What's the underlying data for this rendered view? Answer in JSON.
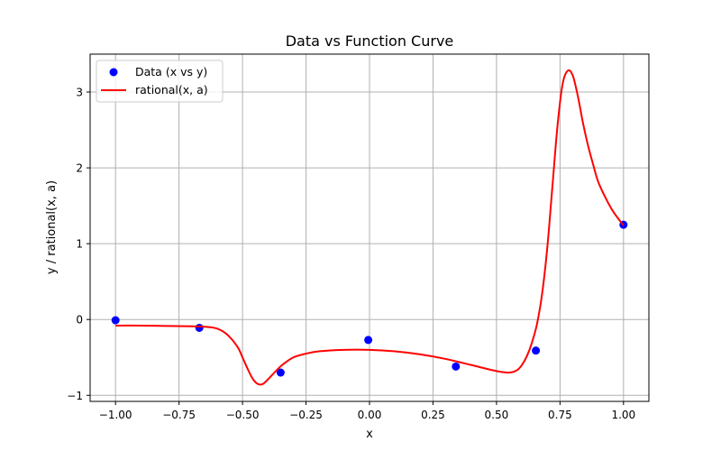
{
  "chart_data": {
    "type": "scatter",
    "title": "Data vs Function Curve",
    "xlabel": "x",
    "ylabel": "y / rational(x, a)",
    "xlim": [
      -1.1,
      1.1
    ],
    "ylim": [
      -1.08,
      3.5
    ],
    "xticks": [
      -1.0,
      -0.75,
      -0.5,
      -0.25,
      0.0,
      0.25,
      0.5,
      0.75,
      1.0
    ],
    "xtick_labels": [
      "−1.00",
      "−0.75",
      "−0.50",
      "−0.25",
      "0.00",
      "0.25",
      "0.50",
      "0.75",
      "1.00"
    ],
    "yticks": [
      -1,
      0,
      1,
      2,
      3
    ],
    "ytick_labels": [
      "−1",
      "0",
      "1",
      "2",
      "3"
    ],
    "grid": true,
    "legend": {
      "position": "upper-left",
      "entries": [
        "Data (x vs y)",
        "rational(x, a)"
      ]
    },
    "series": [
      {
        "name": "Data (x vs y)",
        "kind": "scatter",
        "color": "#0000ff",
        "x": [
          -1.0,
          -0.67,
          -0.35,
          -0.005,
          0.34,
          0.655,
          1.0
        ],
        "y": [
          -0.01,
          -0.11,
          -0.7,
          -0.27,
          -0.62,
          -0.41,
          1.25
        ]
      },
      {
        "name": "rational(x, a)",
        "kind": "line",
        "color": "#ff0000",
        "x": [
          -1.0,
          -0.9,
          -0.8,
          -0.7,
          -0.65,
          -0.6,
          -0.56,
          -0.52,
          -0.5,
          -0.48,
          -0.46,
          -0.44,
          -0.42,
          -0.4,
          -0.38,
          -0.36,
          -0.34,
          -0.3,
          -0.25,
          -0.2,
          -0.1,
          0.0,
          0.1,
          0.2,
          0.3,
          0.4,
          0.5,
          0.55,
          0.58,
          0.6,
          0.62,
          0.64,
          0.66,
          0.68,
          0.7,
          0.72,
          0.74,
          0.76,
          0.78,
          0.8,
          0.82,
          0.84,
          0.86,
          0.88,
          0.9,
          0.93,
          0.96,
          1.0
        ],
        "y": [
          -0.08,
          -0.08,
          -0.085,
          -0.09,
          -0.095,
          -0.12,
          -0.2,
          -0.36,
          -0.5,
          -0.65,
          -0.78,
          -0.85,
          -0.85,
          -0.79,
          -0.72,
          -0.65,
          -0.59,
          -0.5,
          -0.45,
          -0.42,
          -0.4,
          -0.4,
          -0.42,
          -0.46,
          -0.52,
          -0.6,
          -0.68,
          -0.7,
          -0.67,
          -0.6,
          -0.48,
          -0.3,
          -0.05,
          0.35,
          0.95,
          1.75,
          2.55,
          3.1,
          3.28,
          3.22,
          2.95,
          2.6,
          2.3,
          2.05,
          1.82,
          1.6,
          1.42,
          1.24
        ]
      }
    ]
  }
}
